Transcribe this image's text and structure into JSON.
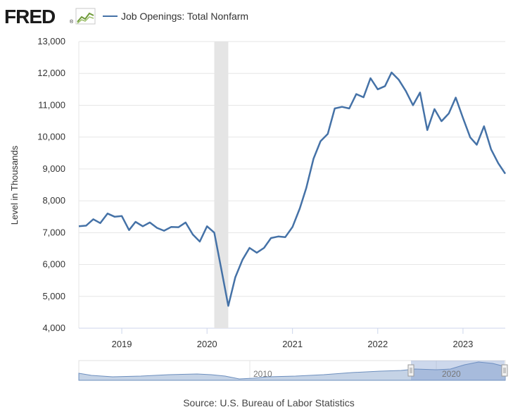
{
  "header": {
    "logo_text": "FRED",
    "logo_mark": "®",
    "legend_label": "Job Openings: Total Nonfarm"
  },
  "source_text": "Source: U.S. Bureau of Labor Statistics",
  "colors": {
    "series": "#4572a7",
    "recession": "#e5e5e5",
    "grid": "#e6e6e6",
    "navigator_fill": "#b6c8e0"
  },
  "navigator": {
    "tick_labels": [
      "2010",
      "2020"
    ]
  },
  "chart_data": {
    "type": "line",
    "title": "",
    "xlabel": "",
    "ylabel": "Level in Thousands",
    "ylim": [
      4000,
      13000
    ],
    "yticks": [
      4000,
      5000,
      6000,
      7000,
      8000,
      9000,
      10000,
      11000,
      12000,
      13000
    ],
    "ytick_labels": [
      "4,000",
      "5,000",
      "6,000",
      "7,000",
      "8,000",
      "9,000",
      "10,000",
      "11,000",
      "12,000",
      "13,000"
    ],
    "xlim": [
      "2018-07-01",
      "2023-07-01"
    ],
    "xticks": [
      "2019-01-01",
      "2020-01-01",
      "2021-01-01",
      "2022-01-01",
      "2023-01-01"
    ],
    "xtick_labels": [
      "2019",
      "2020",
      "2021",
      "2022",
      "2023"
    ],
    "grid": true,
    "legend_position": "top",
    "recession_band": [
      "2020-02-01",
      "2020-04-01"
    ],
    "series": [
      {
        "name": "Job Openings: Total Nonfarm",
        "x": [
          "2018-07",
          "2018-08",
          "2018-09",
          "2018-10",
          "2018-11",
          "2018-12",
          "2019-01",
          "2019-02",
          "2019-03",
          "2019-04",
          "2019-05",
          "2019-06",
          "2019-07",
          "2019-08",
          "2019-09",
          "2019-10",
          "2019-11",
          "2019-12",
          "2020-01",
          "2020-02",
          "2020-03",
          "2020-04",
          "2020-05",
          "2020-06",
          "2020-07",
          "2020-08",
          "2020-09",
          "2020-10",
          "2020-11",
          "2020-12",
          "2021-01",
          "2021-02",
          "2021-03",
          "2021-04",
          "2021-05",
          "2021-06",
          "2021-07",
          "2021-08",
          "2021-09",
          "2021-10",
          "2021-11",
          "2021-12",
          "2022-01",
          "2022-02",
          "2022-03",
          "2022-04",
          "2022-05",
          "2022-06",
          "2022-07",
          "2022-08",
          "2022-09",
          "2022-10",
          "2022-11",
          "2022-12",
          "2023-01",
          "2023-02",
          "2023-03",
          "2023-04",
          "2023-05",
          "2023-06",
          "2023-07"
        ],
        "values": [
          7200,
          7220,
          7420,
          7300,
          7600,
          7500,
          7520,
          7080,
          7340,
          7200,
          7320,
          7150,
          7060,
          7180,
          7170,
          7320,
          6940,
          6720,
          7200,
          7000,
          5900,
          4700,
          5600,
          6150,
          6520,
          6370,
          6520,
          6830,
          6880,
          6860,
          7180,
          7760,
          8400,
          9320,
          9870,
          10100,
          10900,
          10950,
          10900,
          11350,
          11250,
          11850,
          11500,
          11600,
          12030,
          11800,
          11450,
          11000,
          11400,
          10220,
          10880,
          10500,
          10740,
          11240,
          10600,
          9990,
          9760,
          10340,
          9620,
          9180,
          8850
        ]
      }
    ]
  }
}
